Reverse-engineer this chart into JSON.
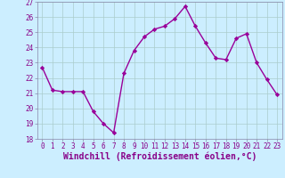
{
  "x": [
    0,
    1,
    2,
    3,
    4,
    5,
    6,
    7,
    8,
    9,
    10,
    11,
    12,
    13,
    14,
    15,
    16,
    17,
    18,
    19,
    20,
    21,
    22,
    23
  ],
  "y": [
    22.7,
    21.2,
    21.1,
    21.1,
    21.1,
    19.8,
    19.0,
    18.4,
    22.3,
    23.8,
    24.7,
    25.2,
    25.4,
    25.9,
    26.7,
    25.4,
    24.3,
    23.3,
    23.2,
    24.6,
    24.9,
    23.0,
    21.9,
    20.9
  ],
  "line_color": "#990099",
  "marker": "D",
  "marker_size": 2.2,
  "bg_color": "#cceeff",
  "grid_color": "#aacccc",
  "xlabel": "Windchill (Refroidissement éolien,°C)",
  "ylim": [
    18,
    27
  ],
  "xlim_min": -0.5,
  "xlim_max": 23.5,
  "yticks": [
    18,
    19,
    20,
    21,
    22,
    23,
    24,
    25,
    26,
    27
  ],
  "xticks": [
    0,
    1,
    2,
    3,
    4,
    5,
    6,
    7,
    8,
    9,
    10,
    11,
    12,
    13,
    14,
    15,
    16,
    17,
    18,
    19,
    20,
    21,
    22,
    23
  ],
  "tick_fontsize": 5.5,
  "xlabel_fontsize": 7.0,
  "line_width": 1.0,
  "axes_color": "#880088",
  "spine_color": "#8888aa"
}
